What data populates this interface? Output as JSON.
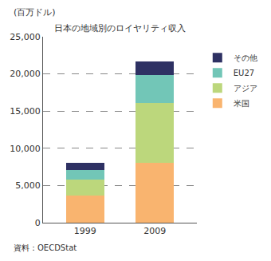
{
  "chart_data": {
    "type": "bar",
    "stacked": true,
    "title": "日本の地域別のロイヤリティ収入",
    "y_label": "(百万ドル)",
    "source": "資料：OECDStat",
    "categories": [
      "1999",
      "2009"
    ],
    "series": [
      {
        "name": "米国",
        "color": "#f9b46f",
        "values": [
          3700,
          8100
        ]
      },
      {
        "name": "アジア",
        "color": "#bcd77c",
        "values": [
          2100,
          8000
        ]
      },
      {
        "name": "EU27",
        "color": "#72c6b7",
        "values": [
          1300,
          3700
        ]
      },
      {
        "name": "その他",
        "color": "#2e3163",
        "values": [
          1000,
          1900
        ]
      }
    ],
    "ylim": [
      0,
      25000
    ],
    "yticks": [
      0,
      {
        "value": 5000,
        "label": "5,000"
      },
      {
        "value": 10000,
        "label": "10,000"
      },
      {
        "value": 15000,
        "label": "15,000"
      },
      {
        "value": 20000,
        "label": "20,000"
      },
      {
        "value": 25000,
        "label": "25,000"
      }
    ],
    "grid": true,
    "legend": "right"
  }
}
